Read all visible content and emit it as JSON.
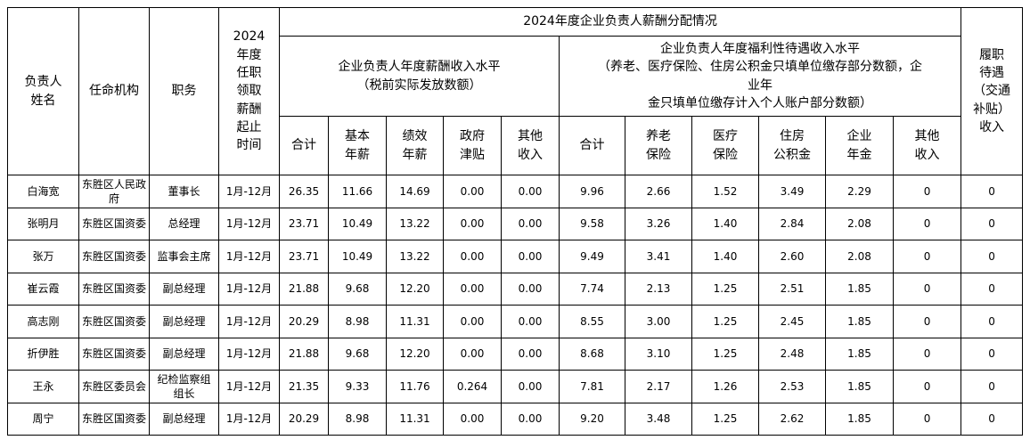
{
  "table": {
    "title_group": "2024年度企业负责人薪酬分配情况",
    "header": {
      "name": "负责人\n姓名",
      "agency": "任命机构",
      "position": "职务",
      "period": "2024\n年度\n任职\n领取\n薪酬\n起止\n时间",
      "salary_group": "企业负责人年度薪酬收入水平\n（税前实际发放数额）",
      "welfare_group": "企业负责人年度福利性待遇收入水平\n（养老、医疗保险、住房公积金只填单位缴存部分数额，企\n业年\n金只填单位缴存计入个人账户部分数额）",
      "duty": "履职\n待遇\n（交通\n补贴）\n收入",
      "salary_cols": [
        "合计",
        "基本\n年薪",
        "绩效\n年薪",
        "政府\n津贴",
        "其他\n收入"
      ],
      "welfare_cols": [
        "合计",
        "养老\n保险",
        "医疗\n保险",
        "住房\n公积金",
        "企业\n年金",
        "其他\n收入"
      ]
    },
    "rows": [
      {
        "cells": [
          "白海宽",
          "东胜区人民政府",
          "董事长",
          "1月-12月",
          "26.35",
          "11.66",
          "14.69",
          "0.00",
          "0.00",
          "9.96",
          "2.66",
          "1.52",
          "3.49",
          "2.29",
          "0",
          "0"
        ]
      },
      {
        "cells": [
          "张明月",
          "东胜区国资委",
          "总经理",
          "1月-12月",
          "23.71",
          "10.49",
          "13.22",
          "0.00",
          "0.00",
          "9.58",
          "3.26",
          "1.40",
          "2.84",
          "2.08",
          "0",
          "0"
        ]
      },
      {
        "cells": [
          "张万",
          "东胜区国资委",
          "监事会主席",
          "1月-12月",
          "23.71",
          "10.49",
          "13.22",
          "0.00",
          "0.00",
          "9.49",
          "3.41",
          "1.40",
          "2.60",
          "2.08",
          "0",
          "0"
        ]
      },
      {
        "cells": [
          "崔云霞",
          "东胜区国资委",
          "副总经理",
          "1月-12月",
          "21.88",
          "9.68",
          "12.20",
          "0.00",
          "0.00",
          "7.74",
          "2.13",
          "1.25",
          "2.51",
          "1.85",
          "0",
          "0"
        ]
      },
      {
        "cells": [
          "高志刚",
          "东胜区国资委",
          "副总经理",
          "1月-12月",
          "20.29",
          "8.98",
          "11.31",
          "0.00",
          "0.00",
          "8.55",
          "3.00",
          "1.25",
          "2.45",
          "1.85",
          "0",
          "0"
        ]
      },
      {
        "cells": [
          "折伊胜",
          "东胜区国资委",
          "副总经理",
          "1月-12月",
          "21.88",
          "9.68",
          "12.20",
          "0.00",
          "0.00",
          "8.68",
          "3.10",
          "1.25",
          "2.48",
          "1.85",
          "0",
          "0"
        ]
      },
      {
        "cells": [
          "王永",
          "东胜区委员会",
          "纪检监察组\n组长",
          "1月-12月",
          "21.35",
          "9.33",
          "11.76",
          "0.264",
          "0.00",
          "7.81",
          "2.17",
          "1.26",
          "2.53",
          "1.85",
          "0",
          "0"
        ]
      },
      {
        "cells": [
          "周宁",
          "东胜区国资委",
          "副总经理",
          "1月-12月",
          "20.29",
          "8.98",
          "11.31",
          "0.00",
          "0.00",
          "9.20",
          "3.48",
          "1.25",
          "2.62",
          "1.85",
          "0",
          "0"
        ]
      }
    ]
  }
}
